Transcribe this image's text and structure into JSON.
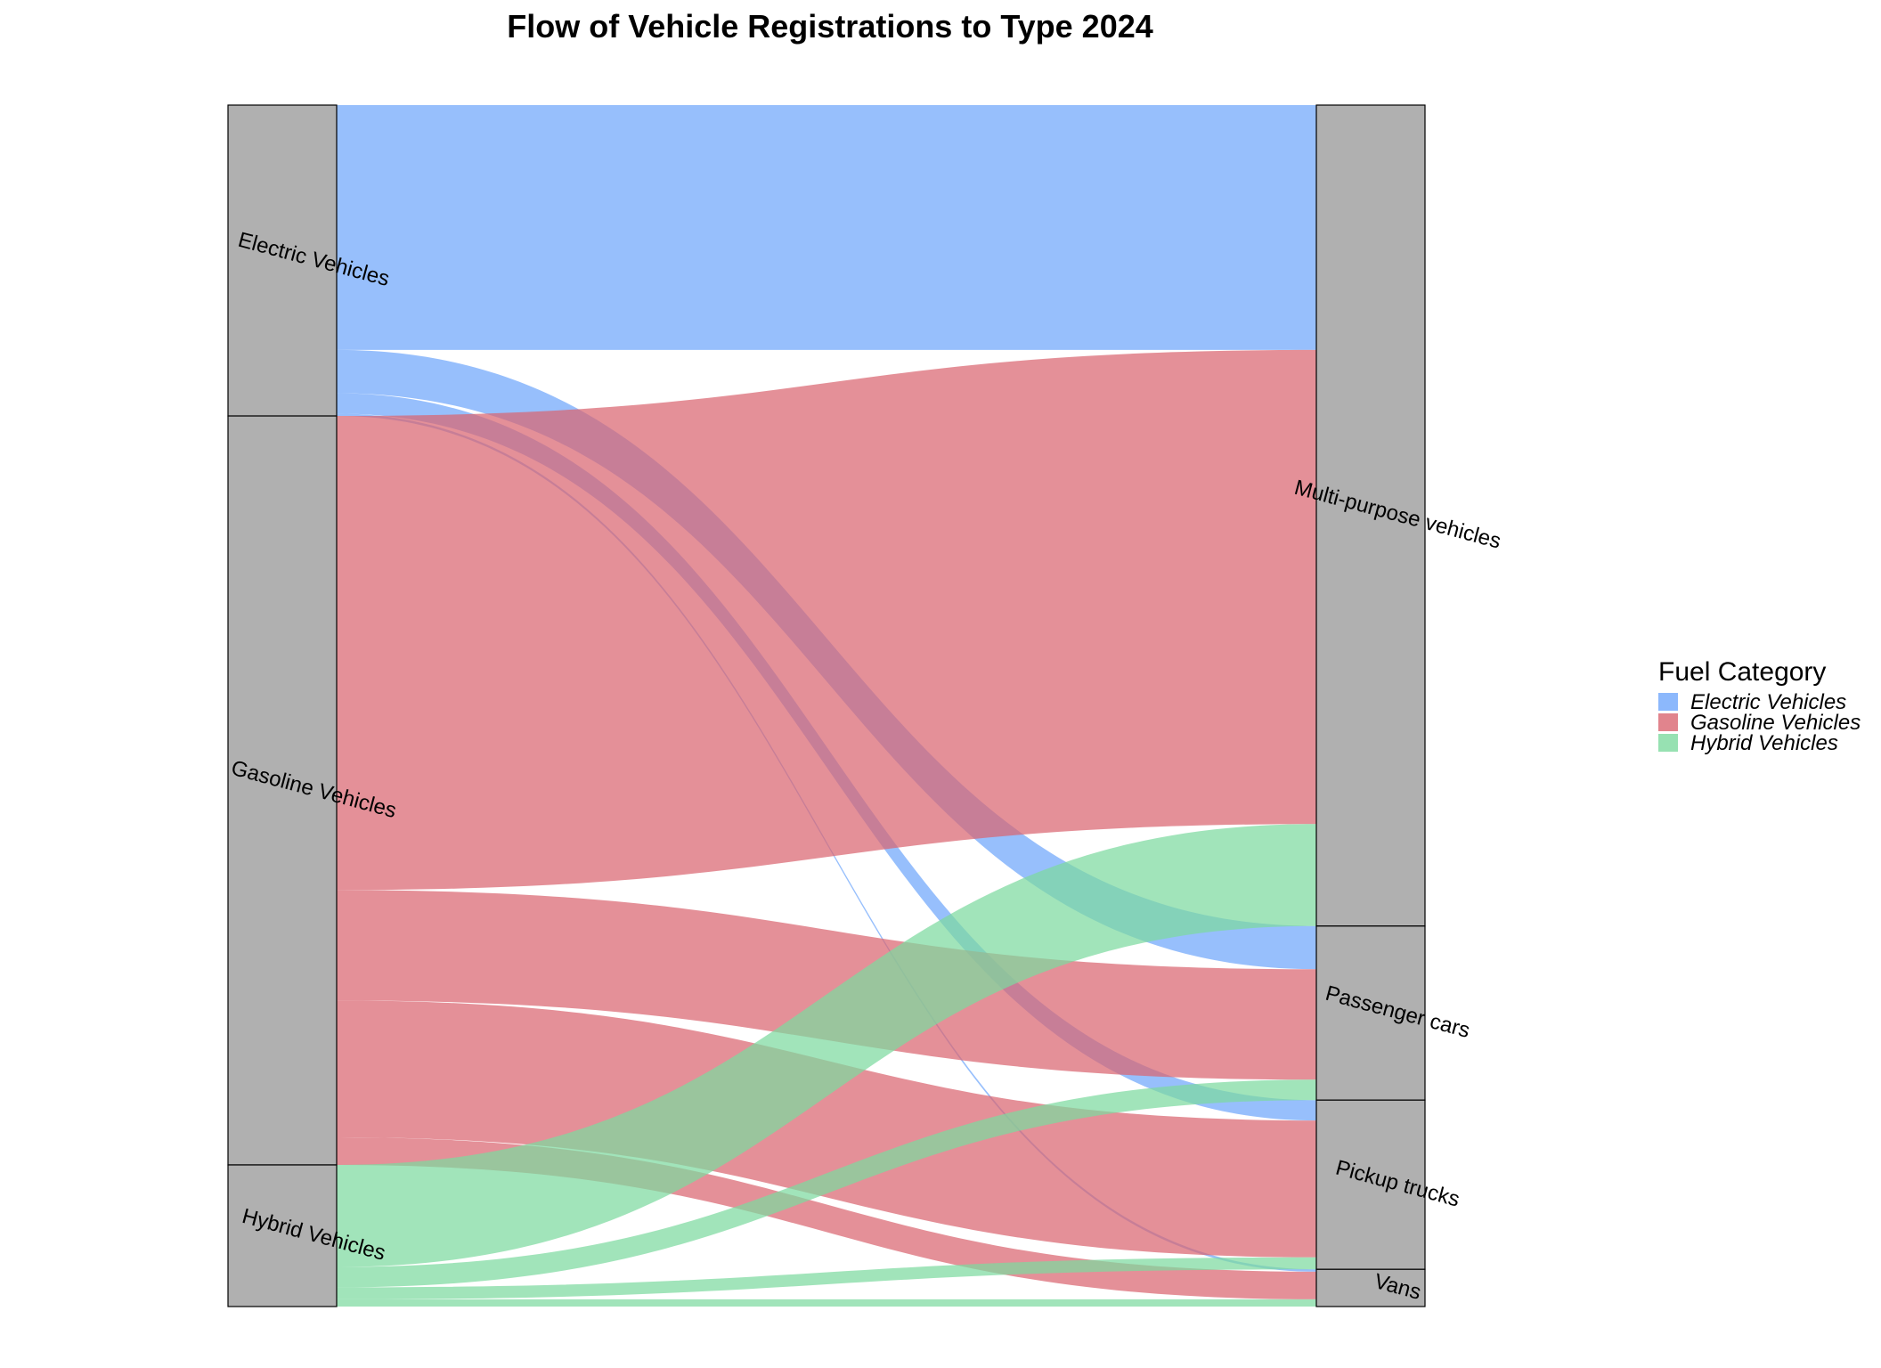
{
  "chart_data": {
    "type": "sankey",
    "title": "Flow of Vehicle Registrations to Type 2024",
    "sources": [
      "Electric Vehicles",
      "Gasoline Vehicles",
      "Hybrid Vehicles"
    ],
    "targets": [
      "Multi-purpose vehicles",
      "Passenger cars",
      "Pickup trucks",
      "Vans"
    ],
    "colors": {
      "Electric Vehicles": "#6fa6fb",
      "Gasoline Vehicles": "#d96570",
      "Hybrid Vehicles": "#7dd99f"
    },
    "node_color": "#b0b0b0",
    "flows": [
      {
        "source": "Electric Vehicles",
        "target": "Multi-purpose vehicles",
        "value": 20.4
      },
      {
        "source": "Electric Vehicles",
        "target": "Passenger cars",
        "value": 3.6
      },
      {
        "source": "Electric Vehicles",
        "target": "Pickup trucks",
        "value": 1.7
      },
      {
        "source": "Electric Vehicles",
        "target": "Vans",
        "value": 0.2
      },
      {
        "source": "Gasoline Vehicles",
        "target": "Multi-purpose vehicles",
        "value": 39.5
      },
      {
        "source": "Gasoline Vehicles",
        "target": "Passenger cars",
        "value": 9.2
      },
      {
        "source": "Gasoline Vehicles",
        "target": "Pickup trucks",
        "value": 11.4
      },
      {
        "source": "Gasoline Vehicles",
        "target": "Vans",
        "value": 2.3
      },
      {
        "source": "Hybrid Vehicles",
        "target": "Multi-purpose vehicles",
        "value": 8.5
      },
      {
        "source": "Hybrid Vehicles",
        "target": "Passenger cars",
        "value": 1.7
      },
      {
        "source": "Hybrid Vehicles",
        "target": "Pickup trucks",
        "value": 1.0
      },
      {
        "source": "Hybrid Vehicles",
        "target": "Vans",
        "value": 0.6
      }
    ],
    "legend": {
      "title": "Fuel Category",
      "entries": [
        "Electric Vehicles",
        "Gasoline Vehicles",
        "Hybrid Vehicles"
      ],
      "placement": "right"
    }
  }
}
